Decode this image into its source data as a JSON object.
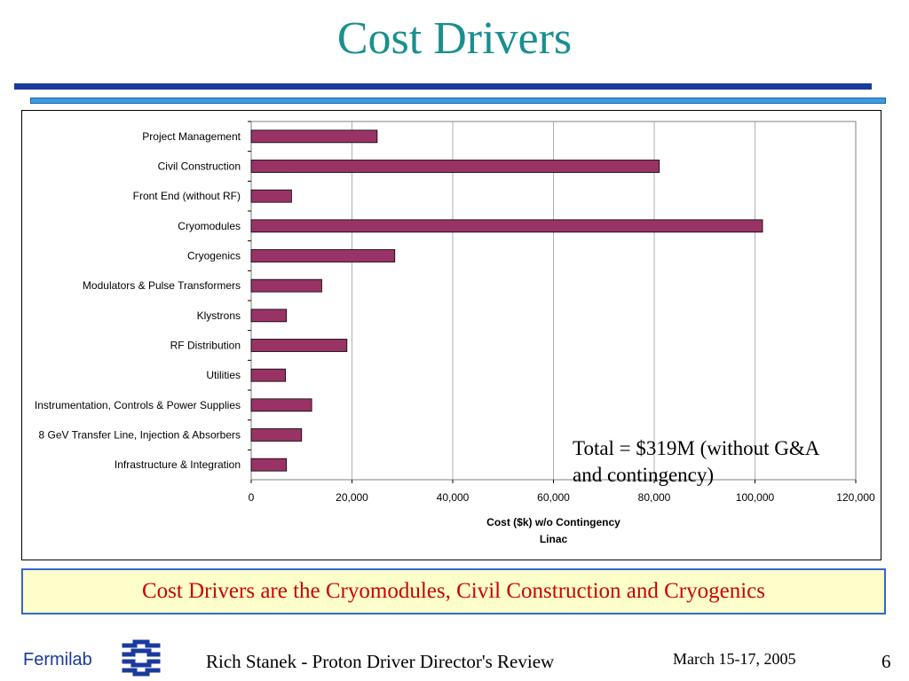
{
  "slide": {
    "title": "Cost Drivers",
    "note": "Total = $319M (without G&A and contingency)",
    "callout": "Cost Drivers are the Cryomodules, Civil Construction and Cryogenics"
  },
  "footer": {
    "logo_text": "Fermilab",
    "presenter": "Rich Stanek - Proton Driver Director's Review",
    "date": "March 15-17, 2005",
    "page": "6"
  },
  "colors": {
    "title": "#1a8f8f",
    "bar_fill": "#993366",
    "rule_dark": "#1a3a9c",
    "rule_light": "#3d9be0",
    "callout_text": "#cc0000",
    "callout_bg": "#ffffcc"
  },
  "icons": {
    "logo": "fermilab-logo-icon"
  },
  "chart_data": {
    "type": "bar",
    "orientation": "horizontal",
    "categories": [
      "Project Management",
      "Civil Construction",
      "Front End (without RF)",
      "Cryomodules",
      "Cryogenics",
      "Modulators & Pulse Transformers",
      "Klystrons",
      "RF Distribution",
      "Utilities",
      "Instrumentation, Controls & Power Supplies",
      "8 GeV Transfer Line, Injection & Absorbers",
      "Infrastructure & Integration"
    ],
    "values": [
      25000,
      81000,
      8000,
      101500,
      28500,
      14000,
      7000,
      19000,
      6800,
      12000,
      10000,
      7000
    ],
    "xlabel": "Cost ($k) w/o Contingency",
    "xlabel2": "Linac",
    "xlim": [
      0,
      120000
    ],
    "xticks": [
      0,
      20000,
      40000,
      60000,
      80000,
      100000,
      120000
    ],
    "xtick_labels": [
      "0",
      "20,000",
      "40,000",
      "60,000",
      "80,000",
      "100,000",
      "120,000"
    ],
    "grid": "vertical"
  }
}
